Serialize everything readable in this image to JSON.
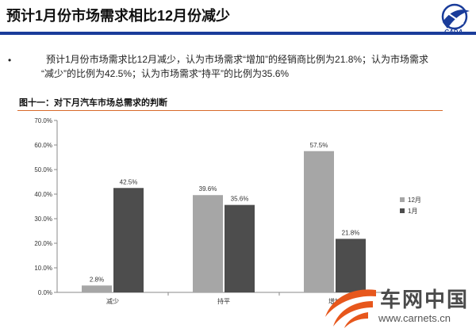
{
  "slide": {
    "title": "预计1月份市场需求相比12月份减少",
    "bullet_line1": "预计1月份市场需求比12月减少，认为市场需求“增加”的经销商比例为21.8%；认为市场需求",
    "bullet_line2": "“减少”的比例为42.5%；认为市场需求“持平”的比例为35.6%",
    "figure_caption": "图十一：对下月汽车市场总需求的判断",
    "accent_color": "#1a3c9a",
    "caption_rule_color": "#d86a2a"
  },
  "chart_data": {
    "type": "bar",
    "categories": [
      "减少",
      "持平",
      "增加"
    ],
    "series": [
      {
        "name": "12月",
        "values": [
          2.8,
          39.6,
          57.5
        ],
        "labels": [
          "2.8%",
          "39.6%",
          "57.5%"
        ],
        "color": "#a6a6a6"
      },
      {
        "name": "1月",
        "values": [
          42.5,
          35.6,
          21.8
        ],
        "labels": [
          "42.5%",
          "35.6%",
          "21.8%"
        ],
        "color": "#4d4d4d"
      }
    ],
    "ylim": [
      0,
      70
    ],
    "yticks": [
      "0.0%",
      "10.0%",
      "20.0%",
      "30.0%",
      "40.0%",
      "50.0%",
      "60.0%",
      "70.0%"
    ],
    "grid": false,
    "legend_position": "right"
  },
  "watermark": {
    "text_cn": "车网中国",
    "url": "www.carnets.cn"
  }
}
